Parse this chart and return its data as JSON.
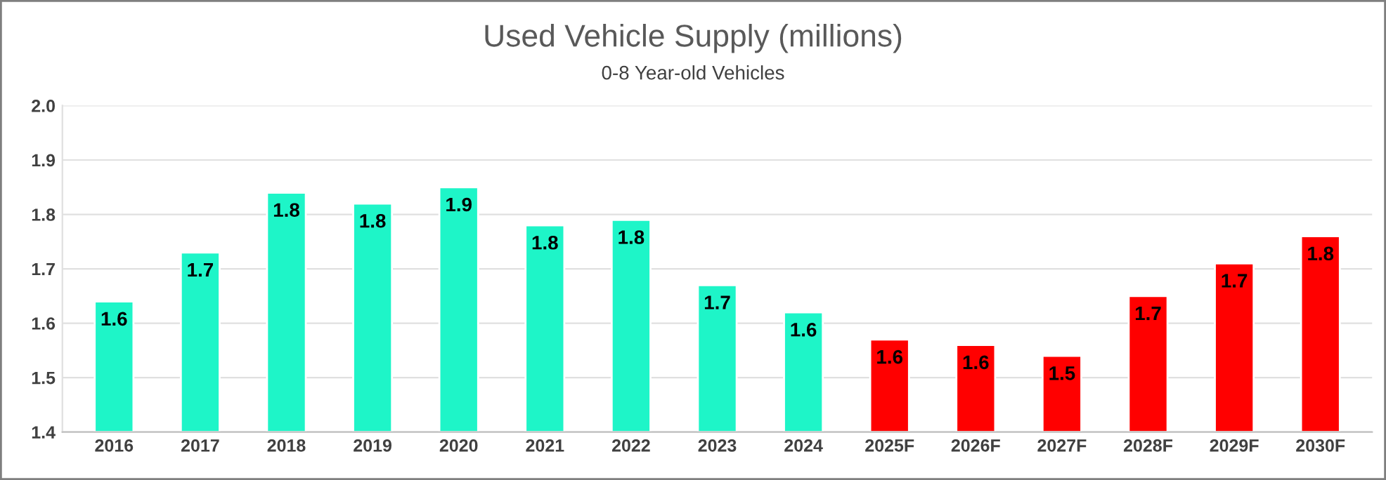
{
  "chart_data": {
    "type": "bar",
    "title": "Used Vehicle Supply (millions)",
    "subtitle": "0-8 Year-old Vehicles",
    "categories": [
      "2016",
      "2017",
      "2018",
      "2019",
      "2020",
      "2021",
      "2022",
      "2023",
      "2024",
      "2025F",
      "2026F",
      "2027F",
      "2028F",
      "2029F",
      "2030F"
    ],
    "values": [
      1.64,
      1.73,
      1.84,
      1.82,
      1.85,
      1.78,
      1.79,
      1.67,
      1.62,
      1.57,
      1.56,
      1.54,
      1.65,
      1.71,
      1.76
    ],
    "colors": [
      "#1ef5c8",
      "#1ef5c8",
      "#1ef5c8",
      "#1ef5c8",
      "#1ef5c8",
      "#1ef5c8",
      "#1ef5c8",
      "#1ef5c8",
      "#1ef5c8",
      "#ff0000",
      "#ff0000",
      "#ff0000",
      "#ff0000",
      "#ff0000",
      "#ff0000"
    ],
    "value_labels": [
      "1.6",
      "1.7",
      "1.8",
      "1.8",
      "1.9",
      "1.8",
      "1.8",
      "1.7",
      "1.6",
      "1.6",
      "1.6",
      "1.5",
      "1.7",
      "1.7",
      "1.8"
    ],
    "ylim": [
      1.4,
      2.0
    ],
    "yticks": [
      {
        "value": 1.4,
        "label": "1.4"
      },
      {
        "value": 1.5,
        "label": "1.5"
      },
      {
        "value": 1.6,
        "label": "1.6"
      },
      {
        "value": 1.7,
        "label": "1.7"
      },
      {
        "value": 1.8,
        "label": "1.8"
      },
      {
        "value": 1.9,
        "label": "1.9"
      },
      {
        "value": 2.0,
        "label": "2.0"
      }
    ],
    "grid": "y",
    "legend": false
  }
}
